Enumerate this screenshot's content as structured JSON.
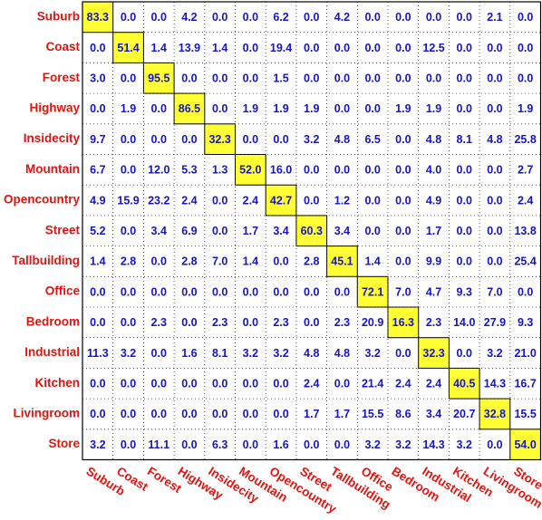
{
  "matrix": {
    "row_labels": [
      "Suburb",
      "Coast",
      "Forest",
      "Highway",
      "Insidecity",
      "Mountain",
      "Opencountry",
      "Street",
      "Tallbuilding",
      "Office",
      "Bedroom",
      "Industrial",
      "Kitchen",
      "Livingroom",
      "Store"
    ],
    "column_labels": [
      "Suburb",
      "Coast",
      "Forest",
      "Highway",
      "Insidecity",
      "Mountain",
      "Opencountry",
      "Street",
      "Tallbuilding",
      "Office",
      "Bedroom",
      "Industrial",
      "Kitchen",
      "Livingroom",
      "Store"
    ],
    "rows": [
      [
        "83.3",
        "0.0",
        "0.0",
        "4.2",
        "0.0",
        "0.0",
        "6.2",
        "0.0",
        "4.2",
        "0.0",
        "0.0",
        "0.0",
        "0.0",
        "2.1",
        "0.0"
      ],
      [
        "0.0",
        "51.4",
        "1.4",
        "13.9",
        "1.4",
        "0.0",
        "19.4",
        "0.0",
        "0.0",
        "0.0",
        "0.0",
        "12.5",
        "0.0",
        "0.0",
        "0.0"
      ],
      [
        "3.0",
        "0.0",
        "95.5",
        "0.0",
        "0.0",
        "0.0",
        "1.5",
        "0.0",
        "0.0",
        "0.0",
        "0.0",
        "0.0",
        "0.0",
        "0.0",
        "0.0"
      ],
      [
        "0.0",
        "1.9",
        "0.0",
        "86.5",
        "0.0",
        "1.9",
        "1.9",
        "1.9",
        "0.0",
        "0.0",
        "1.9",
        "1.9",
        "0.0",
        "0.0",
        "1.9"
      ],
      [
        "9.7",
        "0.0",
        "0.0",
        "0.0",
        "32.3",
        "0.0",
        "0.0",
        "3.2",
        "4.8",
        "6.5",
        "0.0",
        "4.8",
        "8.1",
        "4.8",
        "25.8"
      ],
      [
        "6.7",
        "0.0",
        "12.0",
        "5.3",
        "1.3",
        "52.0",
        "16.0",
        "0.0",
        "0.0",
        "0.0",
        "0.0",
        "4.0",
        "0.0",
        "0.0",
        "2.7"
      ],
      [
        "4.9",
        "15.9",
        "23.2",
        "2.4",
        "0.0",
        "2.4",
        "42.7",
        "0.0",
        "1.2",
        "0.0",
        "0.0",
        "4.9",
        "0.0",
        "0.0",
        "2.4"
      ],
      [
        "5.2",
        "0.0",
        "3.4",
        "6.9",
        "0.0",
        "1.7",
        "3.4",
        "60.3",
        "3.4",
        "0.0",
        "0.0",
        "1.7",
        "0.0",
        "0.0",
        "13.8"
      ],
      [
        "1.4",
        "2.8",
        "0.0",
        "2.8",
        "7.0",
        "1.4",
        "0.0",
        "2.8",
        "45.1",
        "1.4",
        "0.0",
        "9.9",
        "0.0",
        "0.0",
        "25.4"
      ],
      [
        "0.0",
        "0.0",
        "0.0",
        "0.0",
        "0.0",
        "0.0",
        "0.0",
        "0.0",
        "0.0",
        "72.1",
        "7.0",
        "4.7",
        "9.3",
        "7.0",
        "0.0"
      ],
      [
        "0.0",
        "0.0",
        "2.3",
        "0.0",
        "2.3",
        "0.0",
        "2.3",
        "0.0",
        "2.3",
        "20.9",
        "16.3",
        "2.3",
        "14.0",
        "27.9",
        "9.3"
      ],
      [
        "11.3",
        "3.2",
        "0.0",
        "1.6",
        "8.1",
        "3.2",
        "3.2",
        "4.8",
        "4.8",
        "3.2",
        "0.0",
        "32.3",
        "0.0",
        "3.2",
        "21.0"
      ],
      [
        "0.0",
        "0.0",
        "0.0",
        "0.0",
        "0.0",
        "0.0",
        "0.0",
        "2.4",
        "0.0",
        "21.4",
        "2.4",
        "2.4",
        "40.5",
        "14.3",
        "16.7"
      ],
      [
        "0.0",
        "0.0",
        "0.0",
        "0.0",
        "0.0",
        "0.0",
        "0.0",
        "1.7",
        "1.7",
        "15.5",
        "8.6",
        "3.4",
        "20.7",
        "32.8",
        "15.5"
      ],
      [
        "3.2",
        "0.0",
        "11.1",
        "0.0",
        "6.3",
        "0.0",
        "1.6",
        "0.0",
        "0.0",
        "3.2",
        "3.2",
        "14.3",
        "3.2",
        "0.0",
        "54.0"
      ]
    ]
  }
}
